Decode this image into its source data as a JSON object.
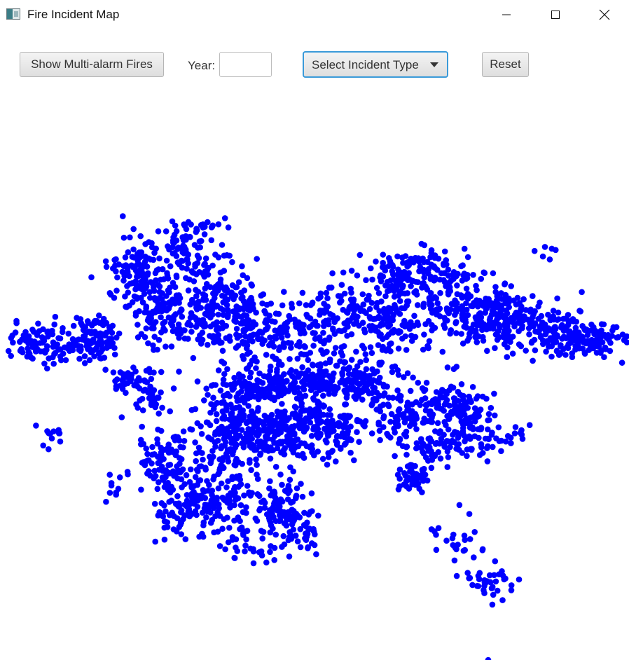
{
  "window": {
    "title": "Fire Incident Map",
    "icon": "app-window-icon"
  },
  "toolbar": {
    "multi_alarm_label": "Show Multi-alarm Fires",
    "year_label": "Year:",
    "year_value": "",
    "incident_type_label": "Select Incident Type",
    "reset_label": "Reset"
  },
  "map": {
    "marker_color": "#0000ff",
    "marker_shape": "circle-dot"
  }
}
